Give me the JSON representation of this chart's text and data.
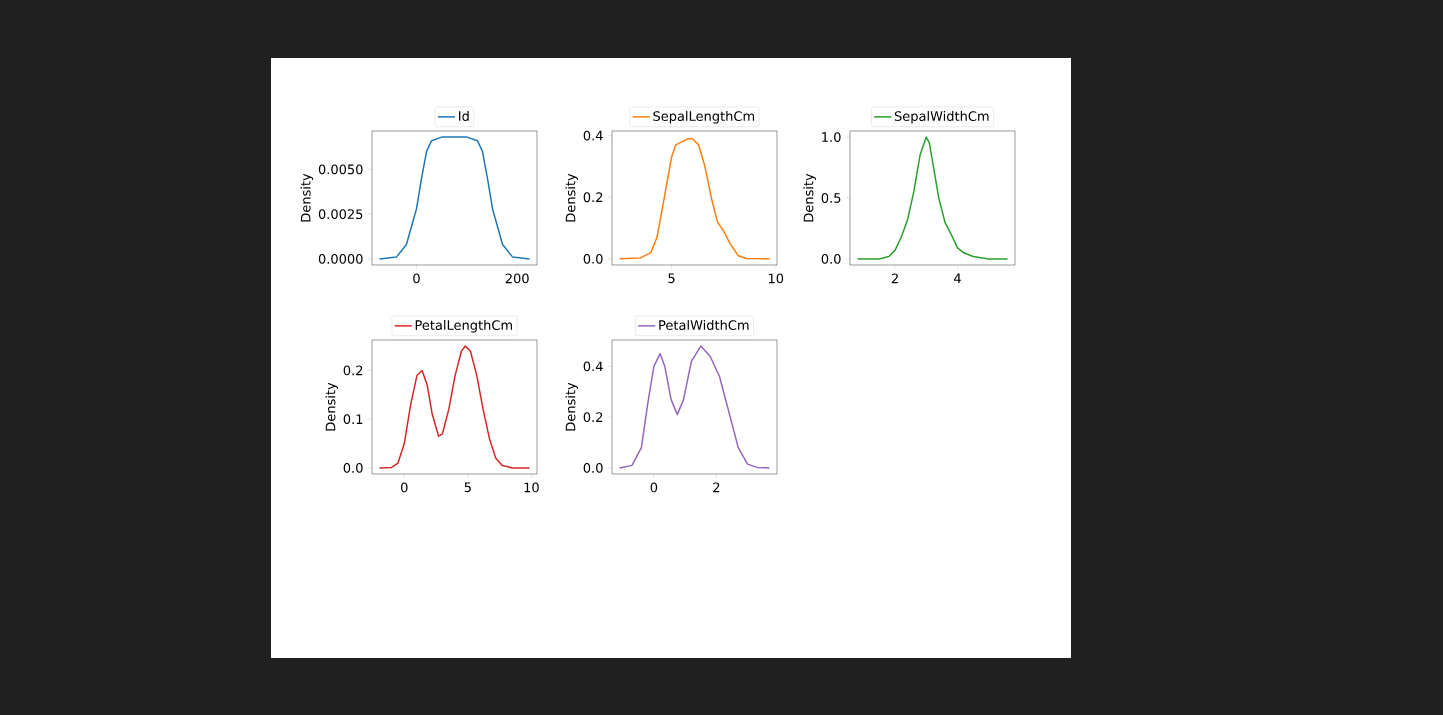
{
  "chart_data": [
    {
      "type": "line",
      "ylabel": "Density",
      "xlim": [
        -88.4,
        239.4
      ],
      "ylim": [
        -0.00034,
        0.00714
      ],
      "xticks": [
        0,
        200
      ],
      "yticks": [
        {
          "value": 0,
          "label": "0.0000"
        },
        {
          "value": 0.0025,
          "label": "0.0025"
        },
        {
          "value": 0.005,
          "label": "0.0050"
        }
      ],
      "legend": "top",
      "series": [
        {
          "name": "Id",
          "color": "#1f77b4",
          "x": [
            -73.5,
            -40,
            -20,
            0,
            10,
            20,
            30,
            50,
            100,
            121,
            131,
            141,
            151,
            171,
            191,
            224.5
          ],
          "values": [
            0,
            0.0001,
            0.0008,
            0.0028,
            0.0045,
            0.006,
            0.0066,
            0.0068,
            0.0068,
            0.0066,
            0.006,
            0.0045,
            0.0028,
            0.0008,
            0.0001,
            0
          ]
        }
      ]
    },
    {
      "type": "line",
      "ylabel": "Density",
      "xlim": [
        2.14,
        10.06
      ],
      "ylim": [
        -0.02,
        0.415
      ],
      "xticks": [
        5,
        10
      ],
      "yticks": [
        {
          "value": 0,
          "label": "0.0"
        },
        {
          "value": 0.2,
          "label": "0.2"
        },
        {
          "value": 0.4,
          "label": "0.4"
        }
      ],
      "legend": "top",
      "series": [
        {
          "name": "SepalLengthCm",
          "color": "#ff7f0e",
          "x": [
            2.5,
            3.5,
            4.0,
            4.3,
            4.6,
            5.0,
            5.2,
            5.5,
            5.8,
            6.0,
            6.3,
            6.6,
            6.9,
            7.2,
            7.5,
            7.8,
            8.2,
            8.6,
            9.7
          ],
          "values": [
            0,
            0.003,
            0.02,
            0.07,
            0.18,
            0.33,
            0.37,
            0.38,
            0.39,
            0.39,
            0.37,
            0.3,
            0.2,
            0.12,
            0.09,
            0.05,
            0.01,
            0.001,
            0
          ]
        }
      ]
    },
    {
      "type": "line",
      "ylabel": "Density",
      "xlim": [
        0.56,
        5.84
      ],
      "ylim": [
        -0.05,
        1.05
      ],
      "xticks": [
        2,
        4
      ],
      "yticks": [
        {
          "value": 0,
          "label": "0.0"
        },
        {
          "value": 0.5,
          "label": "0.5"
        },
        {
          "value": 1,
          "label": "1.0"
        }
      ],
      "legend": "top",
      "series": [
        {
          "name": "SepalWidthCm",
          "color": "#2ca02c",
          "x": [
            0.8,
            1.5,
            1.8,
            2.0,
            2.2,
            2.4,
            2.6,
            2.8,
            3.0,
            3.1,
            3.2,
            3.4,
            3.6,
            3.8,
            4.0,
            4.2,
            4.5,
            5.0,
            5.6
          ],
          "values": [
            0,
            0,
            0.02,
            0.07,
            0.18,
            0.32,
            0.55,
            0.85,
            1.0,
            0.95,
            0.8,
            0.5,
            0.3,
            0.2,
            0.09,
            0.05,
            0.02,
            0,
            0
          ]
        }
      ]
    },
    {
      "type": "line",
      "ylabel": "Density",
      "xlim": [
        -2.54,
        10.44
      ],
      "ylim": [
        -0.0125,
        0.2625
      ],
      "xticks": [
        0,
        5,
        10
      ],
      "yticks": [
        {
          "value": 0,
          "label": "0.0"
        },
        {
          "value": 0.1,
          "label": "0.1"
        },
        {
          "value": 0.2,
          "label": "0.2"
        }
      ],
      "legend": "top",
      "series": [
        {
          "name": "PetalLengthCm",
          "color": "#d62728",
          "x": [
            -1.95,
            -1,
            -0.5,
            0,
            0.5,
            1.0,
            1.4,
            1.8,
            2.2,
            2.7,
            3.0,
            3.5,
            4.0,
            4.5,
            4.8,
            5.2,
            5.7,
            6.2,
            6.7,
            7.2,
            7.7,
            8.5,
            9.85
          ],
          "values": [
            0,
            0.001,
            0.01,
            0.05,
            0.13,
            0.19,
            0.2,
            0.17,
            0.11,
            0.065,
            0.07,
            0.12,
            0.19,
            0.24,
            0.25,
            0.24,
            0.19,
            0.12,
            0.06,
            0.02,
            0.005,
            0,
            0
          ]
        }
      ]
    },
    {
      "type": "line",
      "ylabel": "Density",
      "xlim": [
        -1.34,
        3.94
      ],
      "ylim": [
        -0.024,
        0.504
      ],
      "xticks": [
        0,
        2
      ],
      "yticks": [
        {
          "value": 0,
          "label": "0.0"
        },
        {
          "value": 0.2,
          "label": "0.2"
        },
        {
          "value": 0.4,
          "label": "0.4"
        }
      ],
      "legend": "top",
      "series": [
        {
          "name": "PetalWidthCm",
          "color": "#9467bd",
          "x": [
            -1.1,
            -0.7,
            -0.4,
            -0.2,
            0,
            0.2,
            0.35,
            0.55,
            0.75,
            0.95,
            1.2,
            1.5,
            1.8,
            2.1,
            2.4,
            2.7,
            3.0,
            3.3,
            3.7
          ],
          "values": [
            0,
            0.01,
            0.08,
            0.25,
            0.4,
            0.45,
            0.4,
            0.27,
            0.21,
            0.27,
            0.42,
            0.48,
            0.44,
            0.36,
            0.22,
            0.08,
            0.015,
            0.002,
            0
          ]
        }
      ]
    }
  ]
}
